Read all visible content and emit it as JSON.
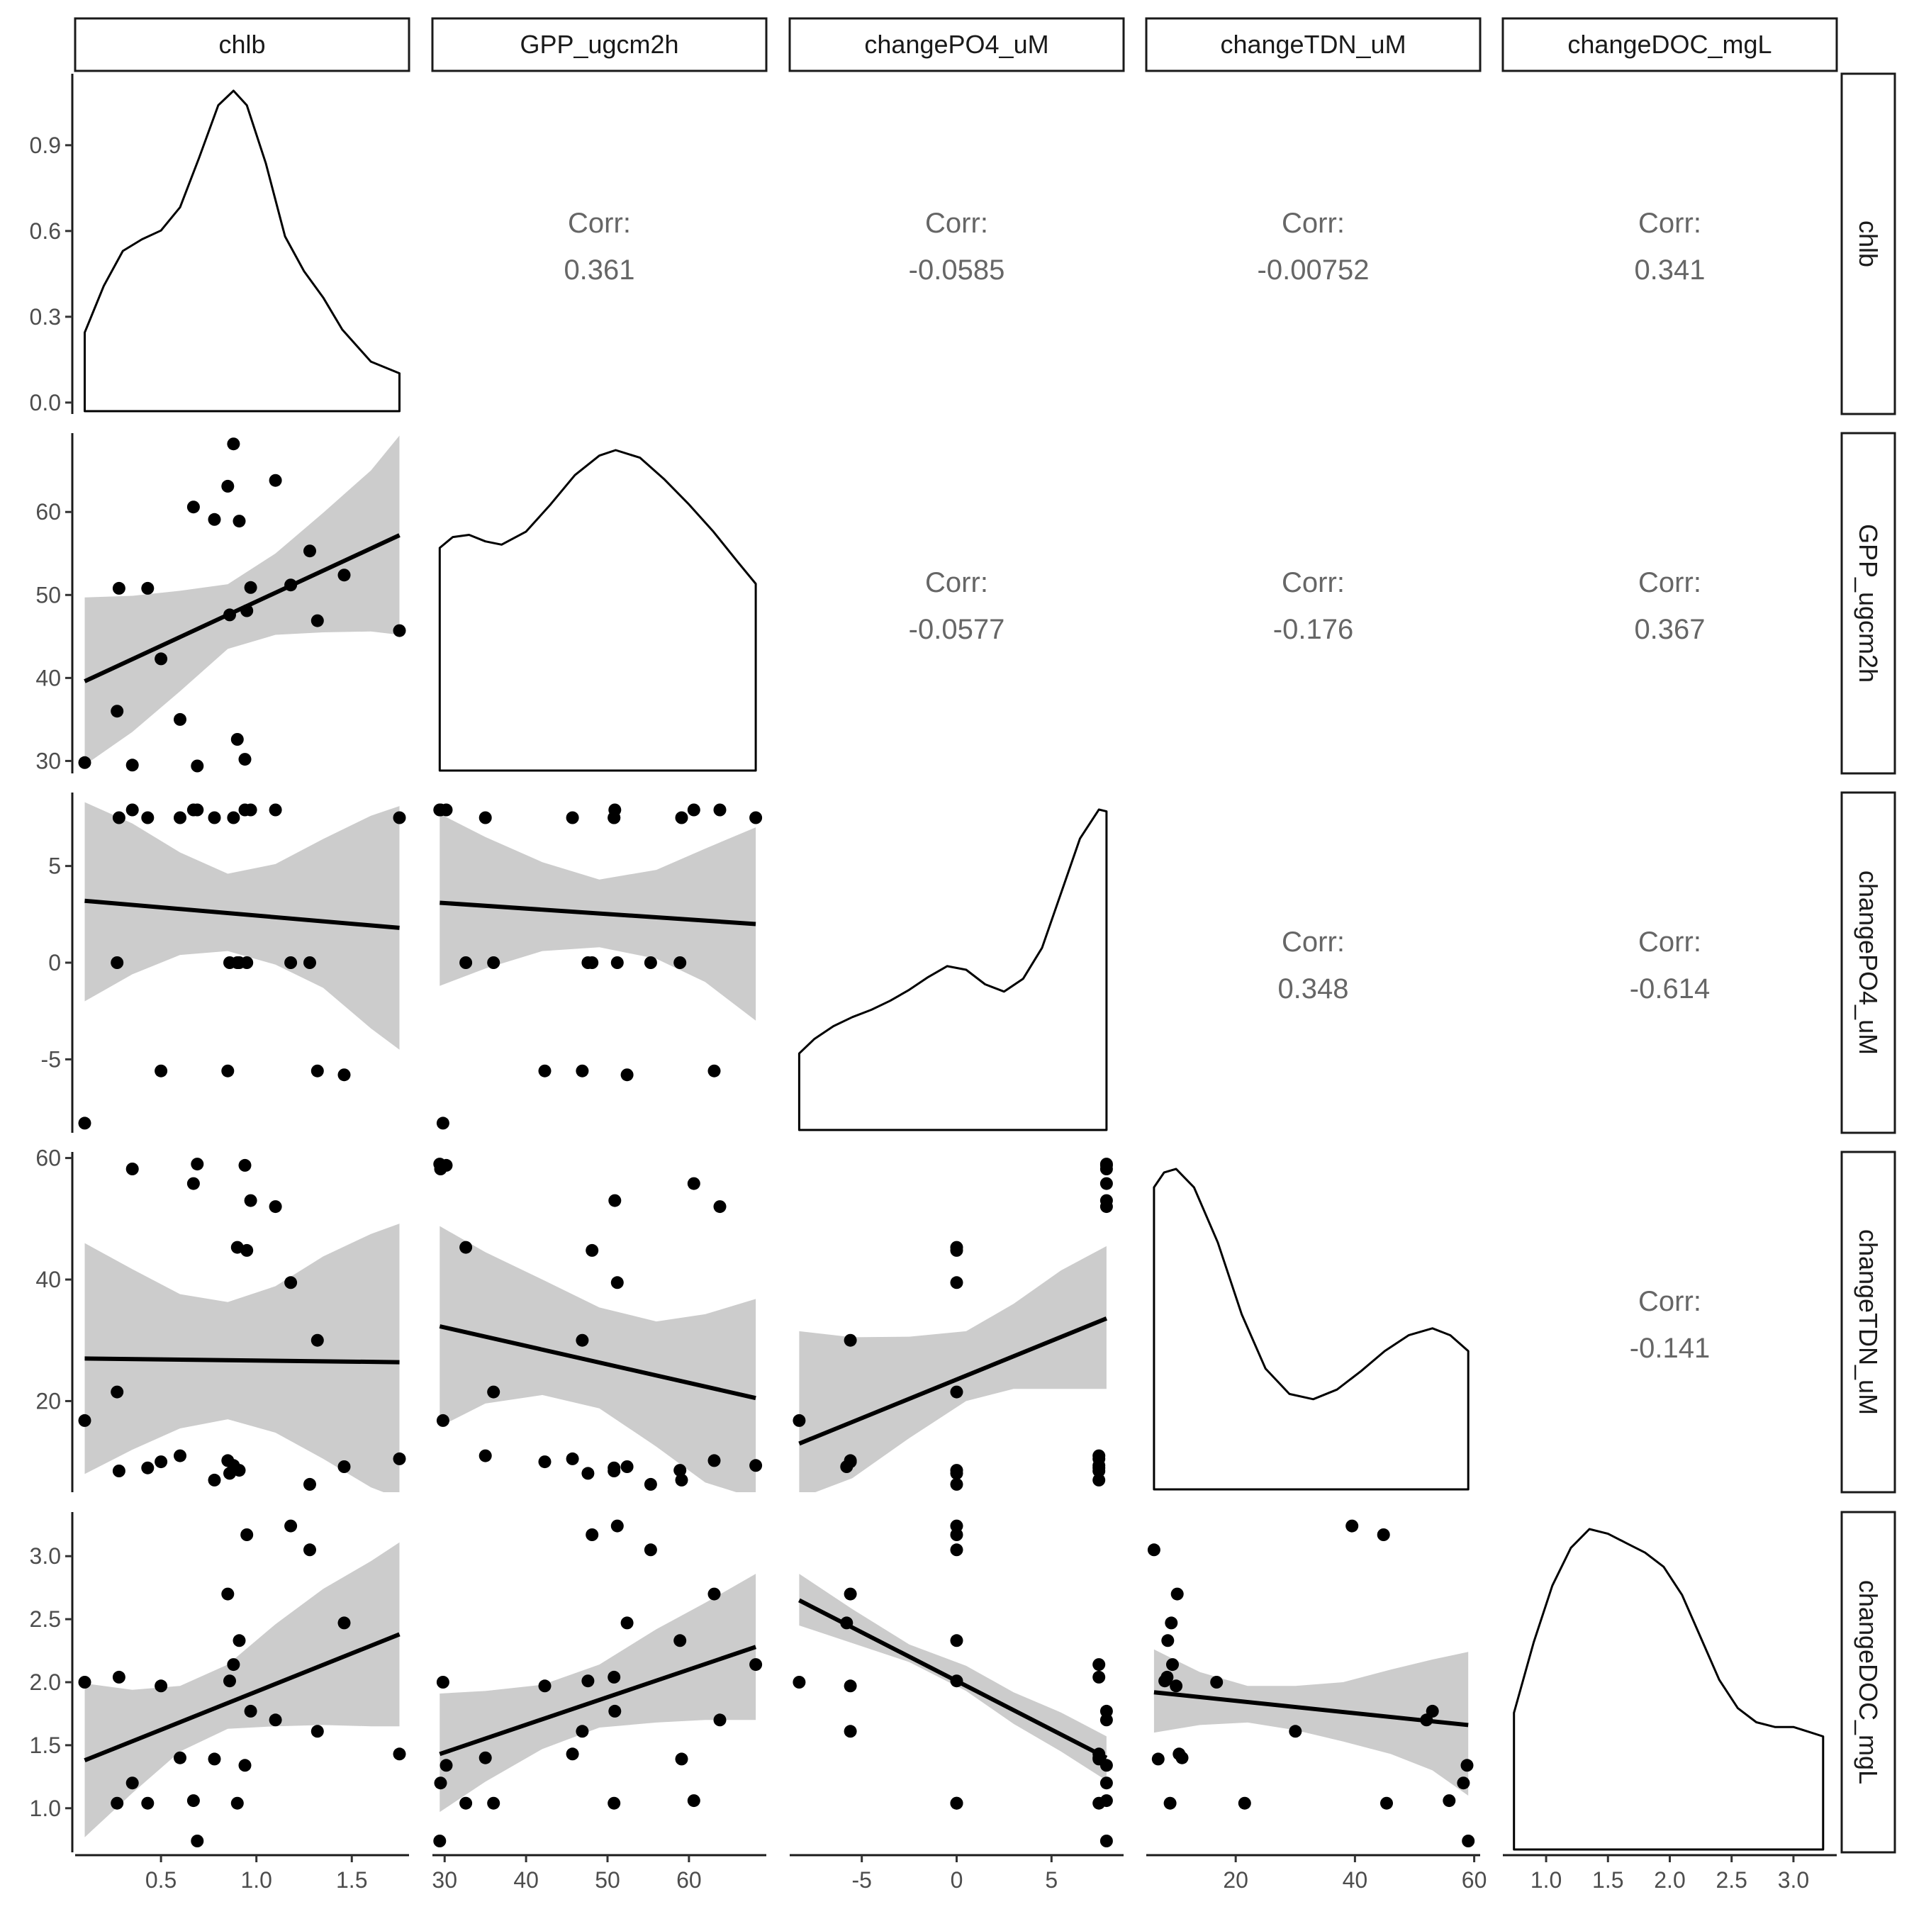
{
  "chart_data": {
    "type": "scatter",
    "variables": [
      "chlb",
      "GPP_ugcm2h",
      "changePO4_uM",
      "changeTDN_uM",
      "changeDOC_mgL"
    ],
    "axes": [
      {
        "name": "chlb",
        "range": [
          0.05,
          1.8
        ],
        "ticks": [
          0.5,
          1.0,
          1.5
        ],
        "tick_labels": [
          "0.5",
          "1.0",
          "1.5"
        ]
      },
      {
        "name": "GPP_ugcm2h",
        "range": [
          28.5,
          69.5
        ],
        "ticks": [
          30,
          40,
          50,
          60
        ],
        "tick_labels": [
          "30",
          "40",
          "50",
          "60"
        ]
      },
      {
        "name": "changePO4_uM",
        "range": [
          -8.8,
          8.8
        ],
        "ticks": [
          -5,
          0,
          5
        ],
        "tick_labels": [
          "-5",
          "0",
          "5"
        ]
      },
      {
        "name": "changeTDN_uM",
        "range": [
          5.0,
          61.0
        ],
        "ticks": [
          20,
          40,
          60
        ],
        "tick_labels": [
          "20",
          "40",
          "60"
        ]
      },
      {
        "name": "changeDOC_mgL",
        "range": [
          0.65,
          3.35
        ],
        "ticks": [
          1.0,
          1.5,
          2.0,
          2.5,
          3.0
        ],
        "tick_labels": [
          "1.0",
          "1.5",
          "2.0",
          "2.5",
          "3.0"
        ]
      }
    ],
    "density_axis": {
      "range": [
        -0.04,
        1.15
      ],
      "ticks": [
        0.0,
        0.3,
        0.6,
        0.9
      ],
      "tick_labels": [
        "0.0",
        "0.3",
        "0.6",
        "0.9"
      ]
    },
    "correlations": [
      {
        "row": 0,
        "col": 1,
        "label": "Corr:",
        "value": "0.361"
      },
      {
        "row": 0,
        "col": 2,
        "label": "Corr:",
        "value": "-0.0585"
      },
      {
        "row": 0,
        "col": 3,
        "label": "Corr:",
        "value": "-0.00752"
      },
      {
        "row": 0,
        "col": 4,
        "label": "Corr:",
        "value": "0.341"
      },
      {
        "row": 1,
        "col": 2,
        "label": "Corr:",
        "value": "-0.0577"
      },
      {
        "row": 1,
        "col": 3,
        "label": "Corr:",
        "value": "-0.176"
      },
      {
        "row": 1,
        "col": 4,
        "label": "Corr:",
        "value": "0.367"
      },
      {
        "row": 2,
        "col": 3,
        "label": "Corr:",
        "value": "0.348"
      },
      {
        "row": 2,
        "col": 4,
        "label": "Corr:",
        "value": "-0.614"
      },
      {
        "row": 3,
        "col": 4,
        "label": "Corr:",
        "value": "-0.141"
      }
    ],
    "observations": [
      {
        "chlb": 0.1,
        "GPP_ugcm2h": 29.8,
        "changePO4_uM": -8.3,
        "changeTDN_uM": 16.8,
        "changeDOC_mgL": 2.0
      },
      {
        "chlb": 0.27,
        "GPP_ugcm2h": 36.0,
        "changePO4_uM": 0.0,
        "changeTDN_uM": 21.5,
        "changeDOC_mgL": 1.04
      },
      {
        "chlb": 0.28,
        "GPP_ugcm2h": 50.8,
        "changePO4_uM": 7.5,
        "changeTDN_uM": 8.5,
        "changeDOC_mgL": 2.04
      },
      {
        "chlb": 0.35,
        "GPP_ugcm2h": 29.5,
        "changePO4_uM": 7.9,
        "changeTDN_uM": 58.2,
        "changeDOC_mgL": 1.2
      },
      {
        "chlb": 0.43,
        "GPP_ugcm2h": 50.8,
        "changePO4_uM": 7.5,
        "changeTDN_uM": 9.0,
        "changeDOC_mgL": 1.04
      },
      {
        "chlb": 0.5,
        "GPP_ugcm2h": 42.3,
        "changePO4_uM": -5.6,
        "changeTDN_uM": 10.0,
        "changeDOC_mgL": 1.97
      },
      {
        "chlb": 0.6,
        "GPP_ugcm2h": 35.0,
        "changePO4_uM": 7.5,
        "changeTDN_uM": 11.0,
        "changeDOC_mgL": 1.4
      },
      {
        "chlb": 0.67,
        "GPP_ugcm2h": 60.6,
        "changePO4_uM": 7.9,
        "changeTDN_uM": 55.8,
        "changeDOC_mgL": 1.06
      },
      {
        "chlb": 0.69,
        "GPP_ugcm2h": 29.4,
        "changePO4_uM": 7.9,
        "changeTDN_uM": 59.0,
        "changeDOC_mgL": 0.74
      },
      {
        "chlb": 0.78,
        "GPP_ugcm2h": 59.1,
        "changePO4_uM": 7.5,
        "changeTDN_uM": 7.0,
        "changeDOC_mgL": 1.39
      },
      {
        "chlb": 0.85,
        "GPP_ugcm2h": 63.1,
        "changePO4_uM": -5.6,
        "changeTDN_uM": 10.2,
        "changeDOC_mgL": 2.7
      },
      {
        "chlb": 0.86,
        "GPP_ugcm2h": 47.6,
        "changePO4_uM": 0.0,
        "changeTDN_uM": 8.1,
        "changeDOC_mgL": 2.01
      },
      {
        "chlb": 0.88,
        "GPP_ugcm2h": 68.2,
        "changePO4_uM": 7.5,
        "changeTDN_uM": 9.4,
        "changeDOC_mgL": 2.14
      },
      {
        "chlb": 0.9,
        "GPP_ugcm2h": 32.6,
        "changePO4_uM": 0.0,
        "changeTDN_uM": 45.3,
        "changeDOC_mgL": 1.04
      },
      {
        "chlb": 0.91,
        "GPP_ugcm2h": 58.9,
        "changePO4_uM": 0.0,
        "changeTDN_uM": 8.6,
        "changeDOC_mgL": 2.33
      },
      {
        "chlb": 0.94,
        "GPP_ugcm2h": 30.2,
        "changePO4_uM": 7.9,
        "changeTDN_uM": 58.8,
        "changeDOC_mgL": 1.34
      },
      {
        "chlb": 0.95,
        "GPP_ugcm2h": 48.1,
        "changePO4_uM": 0.0,
        "changeTDN_uM": 44.8,
        "changeDOC_mgL": 3.17
      },
      {
        "chlb": 0.97,
        "GPP_ugcm2h": 50.9,
        "changePO4_uM": 7.9,
        "changeTDN_uM": 53.0,
        "changeDOC_mgL": 1.77
      },
      {
        "chlb": 1.1,
        "GPP_ugcm2h": 63.8,
        "changePO4_uM": 7.9,
        "changeTDN_uM": 52.0,
        "changeDOC_mgL": 1.7
      },
      {
        "chlb": 1.18,
        "GPP_ugcm2h": 51.2,
        "changePO4_uM": 0.0,
        "changeTDN_uM": 39.5,
        "changeDOC_mgL": 3.24
      },
      {
        "chlb": 1.28,
        "GPP_ugcm2h": 55.3,
        "changePO4_uM": 0.0,
        "changeTDN_uM": 6.3,
        "changeDOC_mgL": 3.05
      },
      {
        "chlb": 1.32,
        "GPP_ugcm2h": 46.9,
        "changePO4_uM": -5.6,
        "changeTDN_uM": 30.0,
        "changeDOC_mgL": 1.61
      },
      {
        "chlb": 1.46,
        "GPP_ugcm2h": 52.4,
        "changePO4_uM": -5.8,
        "changeTDN_uM": 9.2,
        "changeDOC_mgL": 2.47
      },
      {
        "chlb": 1.75,
        "GPP_ugcm2h": 45.7,
        "changePO4_uM": 7.5,
        "changeTDN_uM": 10.5,
        "changeDOC_mgL": 1.43
      }
    ],
    "density_curves": {
      "chlb": [
        [
          0.1,
          0.27
        ],
        [
          0.2,
          0.43
        ],
        [
          0.3,
          0.55
        ],
        [
          0.4,
          0.59
        ],
        [
          0.5,
          0.62
        ],
        [
          0.6,
          0.7
        ],
        [
          0.7,
          0.87
        ],
        [
          0.8,
          1.05
        ],
        [
          0.88,
          1.1
        ],
        [
          0.95,
          1.05
        ],
        [
          1.05,
          0.85
        ],
        [
          1.15,
          0.6
        ],
        [
          1.25,
          0.48
        ],
        [
          1.35,
          0.39
        ],
        [
          1.45,
          0.28
        ],
        [
          1.6,
          0.17
        ],
        [
          1.75,
          0.13
        ]
      ],
      "GPP_ugcm2h": [
        [
          29.4,
          0.0205
        ],
        [
          31,
          0.0215
        ],
        [
          33,
          0.0217
        ],
        [
          35,
          0.0211
        ],
        [
          37,
          0.0208
        ],
        [
          40,
          0.022
        ],
        [
          43,
          0.0245
        ],
        [
          46,
          0.0272
        ],
        [
          49,
          0.029
        ],
        [
          51,
          0.0295
        ],
        [
          54,
          0.0288
        ],
        [
          57,
          0.0268
        ],
        [
          60,
          0.0245
        ],
        [
          63,
          0.022
        ],
        [
          66,
          0.0192
        ],
        [
          68.2,
          0.0172
        ]
      ],
      "changePO4_uM": [
        [
          -8.3,
          0.042
        ],
        [
          -7.5,
          0.05
        ],
        [
          -6.5,
          0.057
        ],
        [
          -5.5,
          0.062
        ],
        [
          -4.5,
          0.066
        ],
        [
          -3.5,
          0.071
        ],
        [
          -2.5,
          0.077
        ],
        [
          -1.5,
          0.084
        ],
        [
          -0.5,
          0.09
        ],
        [
          0.5,
          0.088
        ],
        [
          1.5,
          0.08
        ],
        [
          2.5,
          0.076
        ],
        [
          3.5,
          0.083
        ],
        [
          4.5,
          0.1
        ],
        [
          5.5,
          0.13
        ],
        [
          6.5,
          0.16
        ],
        [
          7.5,
          0.176
        ],
        [
          7.9,
          0.175
        ]
      ],
      "changeTDN_uM": [
        [
          6.3,
          0.0345
        ],
        [
          8,
          0.0362
        ],
        [
          10,
          0.0366
        ],
        [
          13,
          0.0345
        ],
        [
          17,
          0.0282
        ],
        [
          21,
          0.02
        ],
        [
          25,
          0.0138
        ],
        [
          29,
          0.0109
        ],
        [
          33,
          0.0103
        ],
        [
          37,
          0.0114
        ],
        [
          41,
          0.0135
        ],
        [
          45,
          0.0158
        ],
        [
          49,
          0.0176
        ],
        [
          53,
          0.0184
        ],
        [
          56,
          0.0176
        ],
        [
          59,
          0.0158
        ]
      ],
      "changeDOC_mgL": [
        [
          0.74,
          0.29
        ],
        [
          0.9,
          0.44
        ],
        [
          1.05,
          0.56
        ],
        [
          1.2,
          0.64
        ],
        [
          1.35,
          0.68
        ],
        [
          1.5,
          0.67
        ],
        [
          1.65,
          0.65
        ],
        [
          1.8,
          0.63
        ],
        [
          1.95,
          0.6
        ],
        [
          2.1,
          0.54
        ],
        [
          2.25,
          0.45
        ],
        [
          2.4,
          0.36
        ],
        [
          2.55,
          0.3
        ],
        [
          2.7,
          0.27
        ],
        [
          2.85,
          0.26
        ],
        [
          3.0,
          0.26
        ],
        [
          3.12,
          0.25
        ],
        [
          3.24,
          0.24
        ]
      ]
    },
    "smooth_fits": [
      {
        "x": "chlb",
        "y": "GPP_ugcm2h",
        "line": [
          [
            0.1,
            39.6
          ],
          [
            1.75,
            57.2
          ]
        ],
        "band": [
          [
            0.1,
            29.5,
            49.7
          ],
          [
            0.35,
            33.5,
            49.9
          ],
          [
            0.6,
            38.4,
            50.5
          ],
          [
            0.85,
            43.5,
            51.3
          ],
          [
            1.1,
            45.2,
            55.0
          ],
          [
            1.35,
            45.5,
            59.9
          ],
          [
            1.6,
            45.6,
            65.0
          ],
          [
            1.75,
            45.2,
            69.2
          ]
        ]
      },
      {
        "x": "chlb",
        "y": "changePO4_uM",
        "line": [
          [
            0.1,
            3.2
          ],
          [
            1.75,
            1.8
          ]
        ],
        "band": [
          [
            0.1,
            -2.0,
            8.3
          ],
          [
            0.35,
            -0.6,
            7.2
          ],
          [
            0.6,
            0.4,
            5.7
          ],
          [
            0.85,
            0.6,
            4.6
          ],
          [
            1.1,
            -0.1,
            5.1
          ],
          [
            1.35,
            -1.3,
            6.4
          ],
          [
            1.6,
            -3.4,
            7.6
          ],
          [
            1.75,
            -4.5,
            8.1
          ]
        ]
      },
      {
        "x": "GPP_ugcm2h",
        "y": "changePO4_uM",
        "line": [
          [
            29.4,
            3.1
          ],
          [
            68.2,
            2.0
          ]
        ],
        "band": [
          [
            29.4,
            -1.2,
            7.7
          ],
          [
            35,
            -0.3,
            6.5
          ],
          [
            42,
            0.6,
            5.2
          ],
          [
            49,
            0.8,
            4.3
          ],
          [
            56,
            0.2,
            4.8
          ],
          [
            62,
            -1.0,
            5.9
          ],
          [
            68.2,
            -3.0,
            7.0
          ]
        ]
      },
      {
        "x": "chlb",
        "y": "changeTDN_uM",
        "line": [
          [
            0.1,
            27.0
          ],
          [
            1.75,
            26.4
          ]
        ],
        "band": [
          [
            0.1,
            8.0,
            46.0
          ],
          [
            0.35,
            12.0,
            41.7
          ],
          [
            0.6,
            15.5,
            37.6
          ],
          [
            0.85,
            17.0,
            36.3
          ],
          [
            1.1,
            14.8,
            38.9
          ],
          [
            1.35,
            10.5,
            43.8
          ],
          [
            1.6,
            5.8,
            47.5
          ],
          [
            1.75,
            4.0,
            49.2
          ]
        ]
      },
      {
        "x": "GPP_ugcm2h",
        "y": "changeTDN_uM",
        "line": [
          [
            29.4,
            32.3
          ],
          [
            68.2,
            20.5
          ]
        ],
        "band": [
          [
            29.4,
            15.8,
            48.8
          ],
          [
            35,
            19.6,
            44.5
          ],
          [
            42,
            21.0,
            40.0
          ],
          [
            49,
            18.8,
            35.4
          ],
          [
            56,
            12.5,
            33.1
          ],
          [
            62,
            6.6,
            34.3
          ],
          [
            68.2,
            4.0,
            36.8
          ]
        ]
      },
      {
        "x": "changePO4_uM",
        "y": "changeTDN_uM",
        "line": [
          [
            -8.3,
            13.0
          ],
          [
            7.9,
            33.6
          ]
        ],
        "band": [
          [
            -8.3,
            4.0,
            31.5
          ],
          [
            -5.5,
            7.3,
            30.5
          ],
          [
            -2.5,
            13.9,
            30.6
          ],
          [
            0.5,
            20.0,
            31.5
          ],
          [
            3.0,
            22.0,
            36.0
          ],
          [
            5.5,
            22.0,
            41.5
          ],
          [
            7.9,
            22.0,
            45.5
          ]
        ]
      },
      {
        "x": "chlb",
        "y": "changeDOC_mgL",
        "line": [
          [
            0.1,
            1.38
          ],
          [
            1.75,
            2.38
          ]
        ],
        "band": [
          [
            0.1,
            0.77,
            1.99
          ],
          [
            0.35,
            1.12,
            1.94
          ],
          [
            0.6,
            1.45,
            1.97
          ],
          [
            0.85,
            1.63,
            2.14
          ],
          [
            1.1,
            1.65,
            2.46
          ],
          [
            1.35,
            1.66,
            2.74
          ],
          [
            1.6,
            1.65,
            2.96
          ],
          [
            1.75,
            1.65,
            3.11
          ]
        ]
      },
      {
        "x": "GPP_ugcm2h",
        "y": "changeDOC_mgL",
        "line": [
          [
            29.4,
            1.43
          ],
          [
            68.2,
            2.28
          ]
        ],
        "band": [
          [
            29.4,
            0.97,
            1.91
          ],
          [
            35,
            1.21,
            1.93
          ],
          [
            42,
            1.47,
            1.98
          ],
          [
            49,
            1.64,
            2.14
          ],
          [
            56,
            1.68,
            2.42
          ],
          [
            62,
            1.7,
            2.63
          ],
          [
            68.2,
            1.7,
            2.86
          ]
        ]
      },
      {
        "x": "changePO4_uM",
        "y": "changeDOC_mgL",
        "line": [
          [
            -8.3,
            2.65
          ],
          [
            7.9,
            1.4
          ]
        ],
        "band": [
          [
            -8.3,
            2.45,
            2.86
          ],
          [
            -5.5,
            2.31,
            2.58
          ],
          [
            -2.5,
            2.16,
            2.3
          ],
          [
            0.5,
            1.93,
            2.13
          ],
          [
            3.0,
            1.67,
            1.92
          ],
          [
            5.5,
            1.45,
            1.76
          ],
          [
            7.9,
            1.22,
            1.57
          ]
        ]
      },
      {
        "x": "changeTDN_uM",
        "y": "changeDOC_mgL",
        "line": [
          [
            6.3,
            1.92
          ],
          [
            59,
            1.66
          ]
        ],
        "band": [
          [
            6.3,
            1.6,
            2.26
          ],
          [
            14,
            1.66,
            2.08
          ],
          [
            22,
            1.68,
            1.97
          ],
          [
            30,
            1.62,
            1.97
          ],
          [
            38,
            1.53,
            2.0
          ],
          [
            46,
            1.43,
            2.1
          ],
          [
            53,
            1.3,
            2.18
          ],
          [
            59,
            1.1,
            2.24
          ]
        ]
      }
    ]
  }
}
